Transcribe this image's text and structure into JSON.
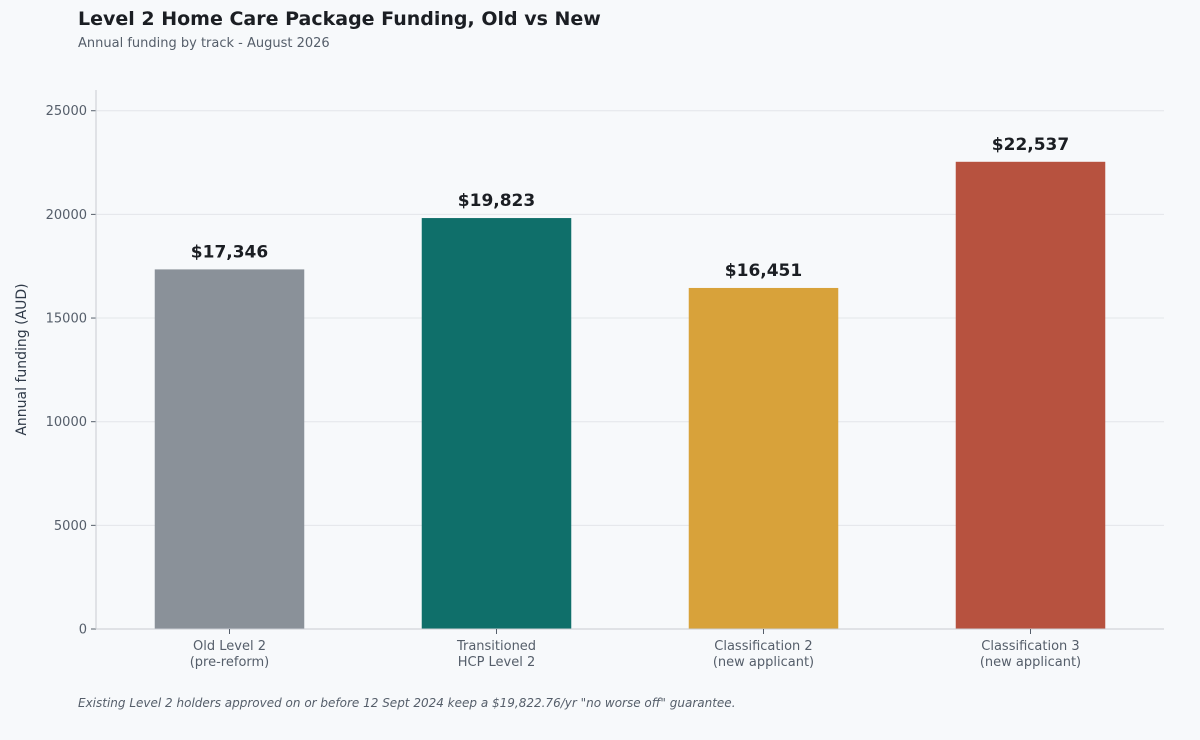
{
  "chart_data": {
    "type": "bar",
    "title": "Level 2 Home Care Package Funding, Old vs New",
    "subtitle": "Annual funding by track - August 2026",
    "xlabel": "",
    "ylabel": "Annual funding (AUD)",
    "ylim": [
      0,
      26000
    ],
    "yticks": [
      0,
      5000,
      10000,
      15000,
      20000,
      25000
    ],
    "grid": true,
    "categories": [
      [
        "Old Level 2",
        "(pre-reform)"
      ],
      [
        "Transitioned",
        "HCP Level 2"
      ],
      [
        "Classification 2",
        "(new applicant)"
      ],
      [
        "Classification 3",
        "(new applicant)"
      ]
    ],
    "values": [
      17346,
      19823,
      16451,
      22537
    ],
    "data_labels": [
      "$17,346",
      "$19,823",
      "$16,451",
      "$22,537"
    ],
    "colors": [
      "#8a9199",
      "#0f6f6a",
      "#d8a23a",
      "#b7523f"
    ]
  },
  "footnote": "Existing Level 2 holders approved on or before 12 Sept 2024 keep a $19,822.76/yr \"no worse off\" guarantee."
}
